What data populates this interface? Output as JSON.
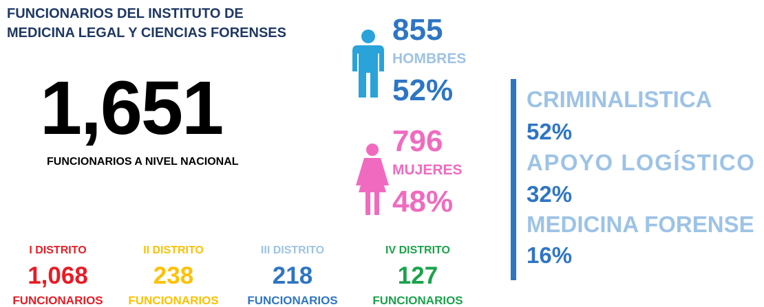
{
  "header": {
    "title_lines": [
      "FUNCIONARIOS DEL INSTITUTO DE",
      "MEDICINA LEGAL Y CIENCIAS FORENSES"
    ]
  },
  "total": {
    "value": "1,651",
    "label": "FUNCIONARIOS A NIVEL NACIONAL"
  },
  "gender": [
    {
      "count": "855",
      "label": "HOMBRES",
      "percent": "52%"
    },
    {
      "count": "796",
      "label": "MUJERES",
      "percent": "48%"
    }
  ],
  "areas": [
    {
      "name": "CRIMINALISTICA",
      "percent": "52%"
    },
    {
      "name": "APOYO LOGÍSTICO",
      "percent": "32%"
    },
    {
      "name": "MEDICINA FORENSE",
      "percent": "16%"
    }
  ],
  "districts": [
    {
      "name": "I DISTRITO",
      "count": "1,068",
      "unit": "FUNCIONARIOS"
    },
    {
      "name": "II DISTRITO",
      "count": "238",
      "unit": "FUNCIONARIOS"
    },
    {
      "name": "III DISTRITO",
      "count": "218",
      "unit": "FUNCIONARIOS"
    },
    {
      "name": "IV DISTRITO",
      "count": "127",
      "unit": "FUNCIONARIOS"
    }
  ]
}
